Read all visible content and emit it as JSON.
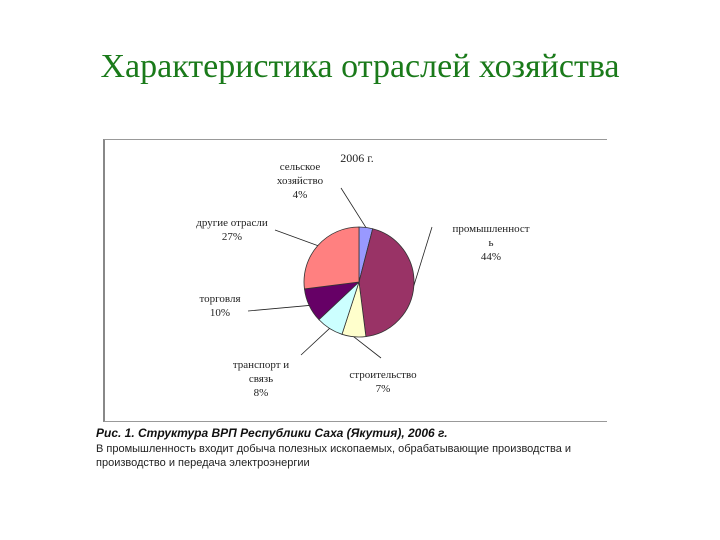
{
  "slide": {
    "title": "Характеристика отраслей хозяйства"
  },
  "caption": {
    "title": "Рис. 1. Структура ВРП Республики Саха (Якутия), 2006 г.",
    "note": "В промышленность входит добыча полезных ископаемых, обрабатывающие производства и производство и передача электроэнергии"
  },
  "chart_data": {
    "type": "pie",
    "title": "2006 г.",
    "slices": [
      {
        "label_lines": [
          "сельское",
          "хозяйство",
          "4%"
        ],
        "value": 4,
        "color": "#9999ff"
      },
      {
        "label_lines": [
          "промышленност",
          "ь",
          "44%"
        ],
        "value": 44,
        "color": "#993366"
      },
      {
        "label_lines": [
          "строительство",
          "7%"
        ],
        "value": 7,
        "color": "#ffffcc"
      },
      {
        "label_lines": [
          "транспорт и",
          "связь",
          "8%"
        ],
        "value": 8,
        "color": "#ccffff"
      },
      {
        "label_lines": [
          "торговля",
          "10%"
        ],
        "value": 10,
        "color": "#660066"
      },
      {
        "label_lines": [
          "другие отрасли",
          "27%"
        ],
        "value": 27,
        "color": "#ff8080"
      }
    ]
  }
}
